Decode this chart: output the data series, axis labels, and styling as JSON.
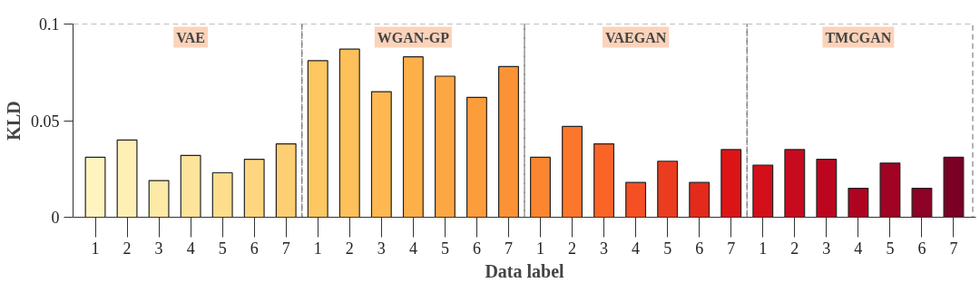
{
  "chart_data": {
    "type": "bar",
    "xlabel": "Data label",
    "ylabel": "KLD",
    "categories": [
      "1",
      "2",
      "3",
      "4",
      "5",
      "6",
      "7",
      "1",
      "2",
      "3",
      "4",
      "5",
      "6",
      "7",
      "1",
      "2",
      "3",
      "4",
      "5",
      "6",
      "7",
      "1",
      "2",
      "3",
      "4",
      "5",
      "6",
      "7"
    ],
    "values": [
      0.031,
      0.04,
      0.019,
      0.032,
      0.023,
      0.03,
      0.038,
      0.081,
      0.087,
      0.065,
      0.083,
      0.073,
      0.062,
      0.078,
      0.031,
      0.047,
      0.038,
      0.018,
      0.029,
      0.018,
      0.035,
      0.027,
      0.035,
      0.03,
      0.015,
      0.028,
      0.015,
      0.031
    ],
    "colors": [
      "#fff4c0",
      "#fef0b5",
      "#fee9a6",
      "#fee39a",
      "#fedd8c",
      "#fed680",
      "#fdcf72",
      "#fdc762",
      "#fdc05a",
      "#fdb852",
      "#fdb04a",
      "#fca743",
      "#fc9d3c",
      "#fb9336",
      "#fb8631",
      "#fb772c",
      "#fa6427",
      "#f45023",
      "#ec3c1f",
      "#e32a1b",
      "#dc1416",
      "#d30f1a",
      "#c80a1e",
      "#bc0620",
      "#ae0422",
      "#a00324",
      "#8d0226",
      "#7a0125"
    ],
    "ylim": [
      0,
      0.1
    ],
    "yticks": [
      0,
      0.05,
      0.1
    ],
    "annotations": [
      "VAE",
      "WGAN-GP",
      "VAEGAN",
      "TMCGAN"
    ],
    "grid": false
  }
}
